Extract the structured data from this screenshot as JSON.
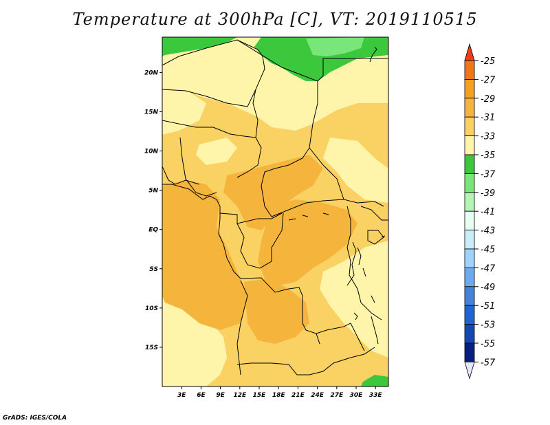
{
  "title": "Temperature at 300hPa [C], VT: 2019110515",
  "footer": "GrADS: IGES/COLA",
  "map": {
    "lon_range": [
      0,
      35
    ],
    "lat_range": [
      -20,
      24.5
    ],
    "x_ticks": [
      "3E",
      "6E",
      "9E",
      "12E",
      "15E",
      "18E",
      "21E",
      "24E",
      "27E",
      "30E",
      "33E"
    ],
    "x_tick_values": [
      3,
      6,
      9,
      12,
      15,
      18,
      21,
      24,
      27,
      30,
      33
    ],
    "y_ticks": [
      "20N",
      "15N",
      "10N",
      "5N",
      "EQ",
      "5S",
      "10S",
      "15S"
    ],
    "y_tick_values": [
      20,
      15,
      10,
      5,
      0,
      -5,
      -10,
      -15
    ]
  },
  "colorbar": {
    "labels": [
      "-25",
      "-27",
      "-29",
      "-31",
      "-33",
      "-35",
      "-37",
      "-39",
      "-41",
      "-43",
      "-45",
      "-47",
      "-49",
      "-51",
      "-53",
      "-55",
      "-57"
    ],
    "colors": [
      "#f0501e",
      "#f07814",
      "#f5a01e",
      "#f5b43c",
      "#fad264",
      "#fff5aa",
      "#3cc83c",
      "#78e678",
      "#b4f5b4",
      "#e6fff0",
      "#c8eefa",
      "#a0d2fa",
      "#6eaaf0",
      "#4682dc",
      "#1e64d2",
      "#1446b4",
      "#0a1e82",
      "#0a0a6e"
    ],
    "top_arrow_color": "#ee3c14",
    "bottom_arrow_color": "#e6e6ff"
  }
}
